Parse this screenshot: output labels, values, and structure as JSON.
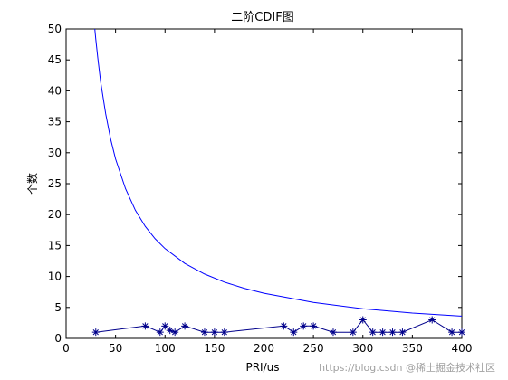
{
  "chart_data": {
    "type": "line",
    "title": "二阶CDIF图",
    "xlabel": "PRI/us",
    "ylabel": "个数",
    "xlim": [
      0,
      400
    ],
    "ylim": [
      0,
      50
    ],
    "xticks": [
      0,
      50,
      100,
      150,
      200,
      250,
      300,
      350,
      400
    ],
    "yticks": [
      0,
      5,
      10,
      15,
      20,
      25,
      30,
      35,
      40,
      45,
      50
    ],
    "grid": false,
    "legend": "none",
    "series": [
      {
        "style": "line-star",
        "color": "#00008b",
        "x": [
          30,
          80,
          95,
          100,
          105,
          110,
          120,
          140,
          150,
          160,
          220,
          230,
          240,
          250,
          270,
          290,
          300,
          310,
          320,
          330,
          340,
          370,
          390,
          400
        ],
        "y": [
          1,
          2,
          1,
          2,
          1.3,
          1,
          2,
          1,
          1,
          1,
          2,
          1,
          2,
          2,
          1,
          1,
          3,
          1,
          1,
          1,
          1,
          3,
          1,
          1
        ]
      },
      {
        "style": "line",
        "color": "#0000ff",
        "formula": "y = 1450 / x",
        "x": [
          29,
          30,
          32,
          35,
          40,
          45,
          50,
          60,
          70,
          80,
          90,
          100,
          120,
          140,
          160,
          180,
          200,
          250,
          300,
          350,
          400
        ],
        "y": [
          50,
          48.3,
          45.3,
          41.4,
          36.3,
          32.2,
          29,
          24.2,
          20.7,
          18.1,
          16.1,
          14.5,
          12.1,
          10.4,
          9.1,
          8.1,
          7.3,
          5.8,
          4.8,
          4.1,
          3.6
        ]
      }
    ]
  },
  "watermark": {
    "url_text": "https://blog.csdn",
    "brand_text": "@稀土掘金技术社区"
  }
}
